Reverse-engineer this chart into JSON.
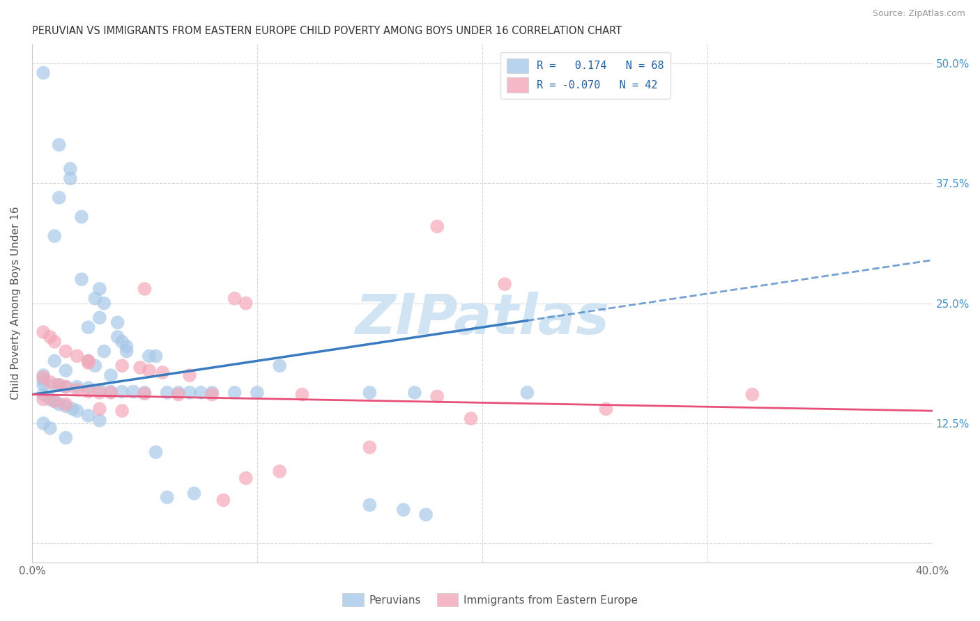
{
  "title": "PERUVIAN VS IMMIGRANTS FROM EASTERN EUROPE CHILD POVERTY AMONG BOYS UNDER 16 CORRELATION CHART",
  "source": "Source: ZipAtlas.com",
  "ylabel": "Child Poverty Among Boys Under 16",
  "xlim": [
    0.0,
    0.4
  ],
  "ylim": [
    -0.02,
    0.52
  ],
  "R_blue": 0.174,
  "N_blue": 68,
  "R_pink": -0.07,
  "N_pink": 42,
  "blue_color": "#a8c8e8",
  "pink_color": "#f4a8b8",
  "blue_line_color": "#3a7bbf",
  "pink_line_color": "#e8507a",
  "blue_line_solid_end": 0.22,
  "blue_line_start_y": 0.155,
  "blue_line_end_y": 0.295,
  "pink_line_start_y": 0.155,
  "pink_line_end_y": 0.138,
  "blue_scatter": [
    [
      0.005,
      0.49
    ],
    [
      0.012,
      0.415
    ],
    [
      0.017,
      0.39
    ],
    [
      0.017,
      0.38
    ],
    [
      0.012,
      0.36
    ],
    [
      0.022,
      0.34
    ],
    [
      0.01,
      0.32
    ],
    [
      0.022,
      0.275
    ],
    [
      0.03,
      0.265
    ],
    [
      0.028,
      0.255
    ],
    [
      0.032,
      0.25
    ],
    [
      0.03,
      0.235
    ],
    [
      0.038,
      0.23
    ],
    [
      0.025,
      0.225
    ],
    [
      0.038,
      0.215
    ],
    [
      0.04,
      0.21
    ],
    [
      0.042,
      0.205
    ],
    [
      0.042,
      0.2
    ],
    [
      0.032,
      0.2
    ],
    [
      0.052,
      0.195
    ],
    [
      0.055,
      0.195
    ],
    [
      0.01,
      0.19
    ],
    [
      0.025,
      0.19
    ],
    [
      0.028,
      0.185
    ],
    [
      0.11,
      0.185
    ],
    [
      0.015,
      0.18
    ],
    [
      0.035,
      0.175
    ],
    [
      0.005,
      0.175
    ],
    [
      0.005,
      0.17
    ],
    [
      0.005,
      0.165
    ],
    [
      0.01,
      0.165
    ],
    [
      0.012,
      0.165
    ],
    [
      0.015,
      0.163
    ],
    [
      0.02,
      0.163
    ],
    [
      0.025,
      0.162
    ],
    [
      0.03,
      0.16
    ],
    [
      0.035,
      0.158
    ],
    [
      0.04,
      0.158
    ],
    [
      0.045,
      0.158
    ],
    [
      0.05,
      0.157
    ],
    [
      0.06,
      0.157
    ],
    [
      0.065,
      0.157
    ],
    [
      0.07,
      0.157
    ],
    [
      0.075,
      0.157
    ],
    [
      0.08,
      0.157
    ],
    [
      0.09,
      0.157
    ],
    [
      0.1,
      0.157
    ],
    [
      0.15,
      0.157
    ],
    [
      0.17,
      0.157
    ],
    [
      0.22,
      0.157
    ],
    [
      0.005,
      0.155
    ],
    [
      0.008,
      0.15
    ],
    [
      0.01,
      0.148
    ],
    [
      0.012,
      0.145
    ],
    [
      0.015,
      0.143
    ],
    [
      0.018,
      0.14
    ],
    [
      0.02,
      0.138
    ],
    [
      0.025,
      0.133
    ],
    [
      0.03,
      0.128
    ],
    [
      0.005,
      0.125
    ],
    [
      0.008,
      0.12
    ],
    [
      0.015,
      0.11
    ],
    [
      0.055,
      0.095
    ],
    [
      0.072,
      0.052
    ],
    [
      0.06,
      0.048
    ],
    [
      0.15,
      0.04
    ],
    [
      0.165,
      0.035
    ],
    [
      0.175,
      0.03
    ]
  ],
  "pink_scatter": [
    [
      0.18,
      0.33
    ],
    [
      0.21,
      0.27
    ],
    [
      0.05,
      0.265
    ],
    [
      0.09,
      0.255
    ],
    [
      0.095,
      0.25
    ],
    [
      0.005,
      0.22
    ],
    [
      0.008,
      0.215
    ],
    [
      0.01,
      0.21
    ],
    [
      0.015,
      0.2
    ],
    [
      0.02,
      0.195
    ],
    [
      0.025,
      0.19
    ],
    [
      0.025,
      0.188
    ],
    [
      0.04,
      0.185
    ],
    [
      0.048,
      0.183
    ],
    [
      0.052,
      0.18
    ],
    [
      0.058,
      0.178
    ],
    [
      0.07,
      0.175
    ],
    [
      0.005,
      0.173
    ],
    [
      0.008,
      0.168
    ],
    [
      0.012,
      0.165
    ],
    [
      0.015,
      0.163
    ],
    [
      0.02,
      0.16
    ],
    [
      0.025,
      0.158
    ],
    [
      0.03,
      0.157
    ],
    [
      0.035,
      0.157
    ],
    [
      0.05,
      0.156
    ],
    [
      0.065,
      0.155
    ],
    [
      0.08,
      0.155
    ],
    [
      0.12,
      0.155
    ],
    [
      0.18,
      0.153
    ],
    [
      0.005,
      0.15
    ],
    [
      0.01,
      0.148
    ],
    [
      0.015,
      0.145
    ],
    [
      0.03,
      0.14
    ],
    [
      0.04,
      0.138
    ],
    [
      0.32,
      0.155
    ],
    [
      0.255,
      0.14
    ],
    [
      0.195,
      0.13
    ],
    [
      0.15,
      0.1
    ],
    [
      0.11,
      0.075
    ],
    [
      0.095,
      0.068
    ],
    [
      0.085,
      0.045
    ]
  ],
  "watermark": "ZIPatlas",
  "watermark_color": "#d0e4f4",
  "background_color": "#ffffff",
  "grid_color": "#d8d8d8"
}
